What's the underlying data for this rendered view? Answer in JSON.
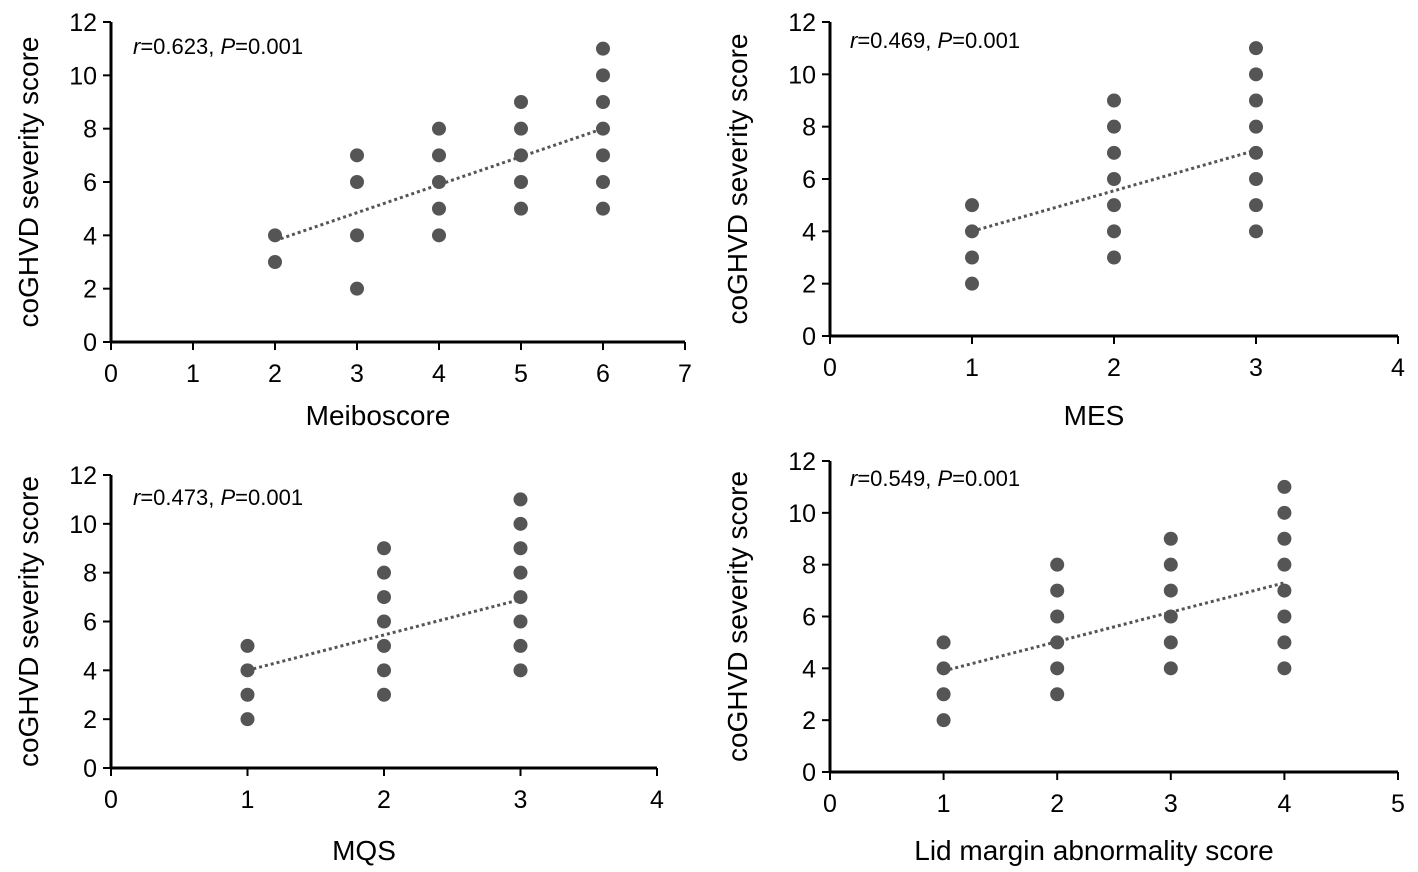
{
  "chart_data": [
    {
      "type": "scatter",
      "title": "",
      "xlabel": "Meiboscore",
      "ylabel": "coGHVD severity score",
      "xlim": [
        0,
        7
      ],
      "ylim": [
        0,
        12
      ],
      "xticks": [
        "0",
        "1",
        "2",
        "3",
        "4",
        "5",
        "6",
        "7"
      ],
      "yticks": [
        "0",
        "2",
        "4",
        "6",
        "8",
        "10",
        "12"
      ],
      "annotation": {
        "r_label": "r",
        "r_value": "=0.623, ",
        "p_label": "P",
        "p_value": "=0.001"
      },
      "points": [
        [
          2,
          4
        ],
        [
          2,
          3
        ],
        [
          3,
          7
        ],
        [
          3,
          6
        ],
        [
          3,
          4
        ],
        [
          3,
          2
        ],
        [
          4,
          8
        ],
        [
          4,
          7
        ],
        [
          4,
          6
        ],
        [
          4,
          5
        ],
        [
          4,
          4
        ],
        [
          5,
          9
        ],
        [
          5,
          8
        ],
        [
          5,
          7
        ],
        [
          5,
          6
        ],
        [
          5,
          5
        ],
        [
          6,
          11
        ],
        [
          6,
          10
        ],
        [
          6,
          9
        ],
        [
          6,
          8
        ],
        [
          6,
          7
        ],
        [
          6,
          6
        ],
        [
          6,
          5
        ]
      ],
      "trendline": {
        "style": "dotted",
        "x": [
          2,
          6
        ],
        "y": [
          3.8,
          8.0
        ]
      },
      "grid": false
    },
    {
      "type": "scatter",
      "title": "",
      "xlabel": "MES",
      "ylabel": "coGHVD severity score",
      "xlim": [
        0,
        4
      ],
      "ylim": [
        0,
        12
      ],
      "xticks": [
        "0",
        "1",
        "2",
        "3",
        "4"
      ],
      "yticks": [
        "0",
        "2",
        "4",
        "6",
        "8",
        "10",
        "12"
      ],
      "annotation": {
        "r_label": "r",
        "r_value": "=0.469, ",
        "p_label": "P",
        "p_value": "=0.001"
      },
      "points": [
        [
          1,
          5
        ],
        [
          1,
          4
        ],
        [
          1,
          3
        ],
        [
          1,
          2
        ],
        [
          2,
          9
        ],
        [
          2,
          8
        ],
        [
          2,
          7
        ],
        [
          2,
          6
        ],
        [
          2,
          5
        ],
        [
          2,
          4
        ],
        [
          2,
          3
        ],
        [
          3,
          11
        ],
        [
          3,
          10
        ],
        [
          3,
          9
        ],
        [
          3,
          8
        ],
        [
          3,
          7
        ],
        [
          3,
          6
        ],
        [
          3,
          5
        ],
        [
          3,
          4
        ]
      ],
      "trendline": {
        "style": "dotted",
        "x": [
          1,
          3
        ],
        "y": [
          4.0,
          7.1
        ]
      },
      "grid": false
    },
    {
      "type": "scatter",
      "title": "",
      "xlabel": "MQS",
      "ylabel": "coGHVD severity score",
      "xlim": [
        0,
        4
      ],
      "ylim": [
        0,
        12
      ],
      "xticks": [
        "0",
        "1",
        "2",
        "3",
        "4"
      ],
      "yticks": [
        "0",
        "2",
        "4",
        "6",
        "8",
        "10",
        "12"
      ],
      "annotation": {
        "r_label": "r",
        "r_value": "=0.473, ",
        "p_label": "P",
        "p_value": "=0.001"
      },
      "points": [
        [
          1,
          5
        ],
        [
          1,
          4
        ],
        [
          1,
          3
        ],
        [
          1,
          2
        ],
        [
          2,
          9
        ],
        [
          2,
          8
        ],
        [
          2,
          7
        ],
        [
          2,
          6
        ],
        [
          2,
          5
        ],
        [
          2,
          4
        ],
        [
          2,
          3
        ],
        [
          3,
          11
        ],
        [
          3,
          10
        ],
        [
          3,
          9
        ],
        [
          3,
          8
        ],
        [
          3,
          7
        ],
        [
          3,
          6
        ],
        [
          3,
          5
        ],
        [
          3,
          4
        ]
      ],
      "trendline": {
        "style": "dotted",
        "x": [
          1,
          3
        ],
        "y": [
          4.0,
          6.9
        ]
      },
      "grid": false
    },
    {
      "type": "scatter",
      "title": "",
      "xlabel": "Lid margin abnormality score",
      "ylabel": "coGHVD severity score",
      "xlim": [
        0,
        5
      ],
      "ylim": [
        0,
        12
      ],
      "xticks": [
        "0",
        "1",
        "2",
        "3",
        "4",
        "5"
      ],
      "yticks": [
        "0",
        "2",
        "4",
        "6",
        "8",
        "10",
        "12"
      ],
      "annotation": {
        "r_label": "r",
        "r_value": "=0.549, ",
        "p_label": "P",
        "p_value": "=0.001"
      },
      "points": [
        [
          1,
          5
        ],
        [
          1,
          4
        ],
        [
          1,
          3
        ],
        [
          1,
          2
        ],
        [
          2,
          8
        ],
        [
          2,
          7
        ],
        [
          2,
          6
        ],
        [
          2,
          5
        ],
        [
          2,
          4
        ],
        [
          2,
          3
        ],
        [
          3,
          9
        ],
        [
          3,
          8
        ],
        [
          3,
          7
        ],
        [
          3,
          6
        ],
        [
          3,
          5
        ],
        [
          3,
          4
        ],
        [
          4,
          11
        ],
        [
          4,
          10
        ],
        [
          4,
          9
        ],
        [
          4,
          8
        ],
        [
          4,
          7
        ],
        [
          4,
          6
        ],
        [
          4,
          5
        ],
        [
          4,
          4
        ]
      ],
      "trendline": {
        "style": "dotted",
        "x": [
          1,
          4
        ],
        "y": [
          3.9,
          7.3
        ]
      },
      "grid": false
    }
  ]
}
